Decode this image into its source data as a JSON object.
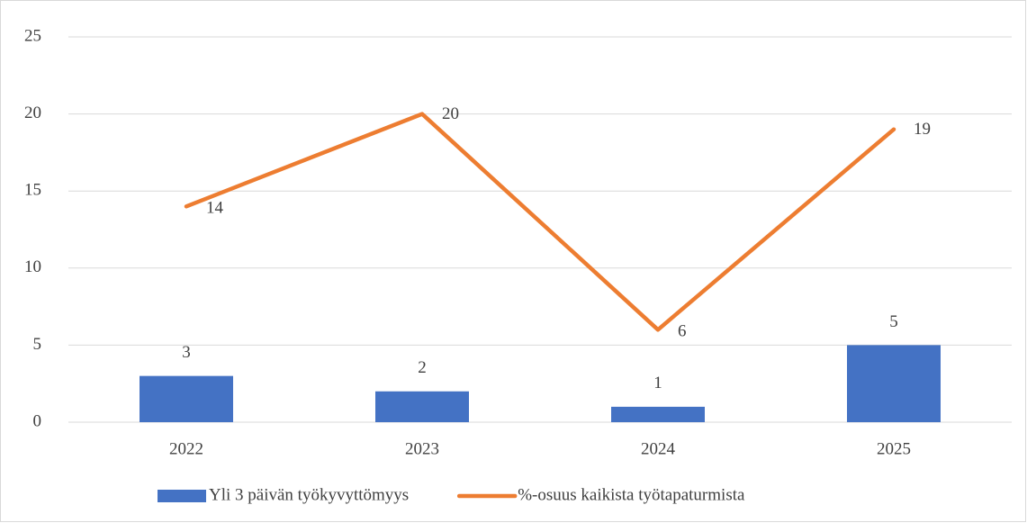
{
  "chart_data": {
    "type": "bar",
    "categories": [
      "2022",
      "2023",
      "2024",
      "2025"
    ],
    "series": [
      {
        "name": "Yli 3 päivän työkyvyttömyys",
        "type": "bar",
        "color": "#4472c4",
        "values": [
          3,
          2,
          1,
          5
        ]
      },
      {
        "name": "%-osuus kaikista työtapaturmista",
        "type": "line",
        "color": "#ed7d31",
        "values": [
          14,
          20,
          6,
          19
        ]
      }
    ],
    "ylim": [
      0,
      25
    ],
    "yticks": [
      0,
      5,
      10,
      15,
      20,
      25
    ],
    "grid": true,
    "legend": "bottom"
  }
}
